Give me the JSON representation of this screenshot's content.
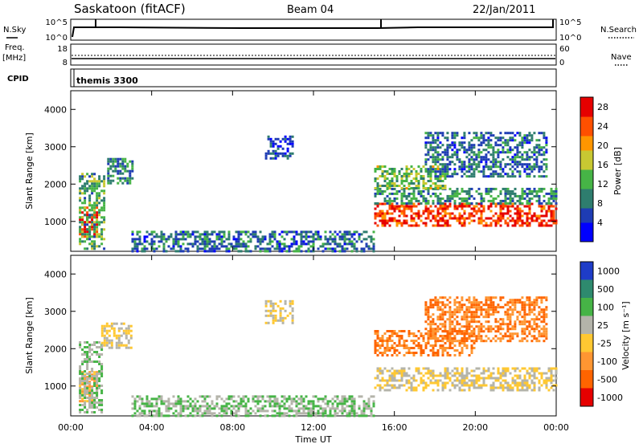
{
  "header": {
    "title": "Saskatoon (fitACF)",
    "beam": "Beam 04",
    "date": "22/Jan/2011"
  },
  "params": {
    "nsky_label": "N.Sky",
    "nsky_ticks": [
      "10^5",
      "10^0"
    ],
    "nsearch_label": "N.Search",
    "freq_label": "Freq.",
    "freq_unit": "[MHz]",
    "freq_ticks": [
      "18",
      "8"
    ],
    "nave_label": "Nave",
    "nave_ticks": [
      "60",
      "0"
    ],
    "cpid_label": "CPID",
    "cpid_value": "themis 3300"
  },
  "x_axis": {
    "label": "Time UT",
    "ticks": [
      "00:00",
      "04:00",
      "08:00",
      "12:00",
      "16:00",
      "20:00",
      "00:00"
    ]
  },
  "chart_data": [
    {
      "type": "heatmap",
      "quantity": "Power",
      "ylabel": "Slant Range [km]",
      "yticks": [
        1000,
        2000,
        3000,
        4000
      ],
      "ylim": [
        200,
        4500
      ],
      "x_range_hours": [
        0,
        24
      ],
      "colorbar": {
        "label": "Power [dB]",
        "ticks": [
          4,
          8,
          12,
          16,
          20,
          24,
          28
        ],
        "range": [
          0,
          30
        ]
      },
      "colors": [
        "#0000ff",
        "#1e3cb4",
        "#2e7d6e",
        "#46b446",
        "#c8c832",
        "#ff9600",
        "#ff5000",
        "#e60000"
      ],
      "regions": [
        {
          "t": [
            0.4,
            1.3
          ],
          "r": [
            600,
            1400
          ],
          "level": 28
        },
        {
          "t": [
            0.4,
            1.6
          ],
          "r": [
            300,
            2300
          ],
          "level": 12
        },
        {
          "t": [
            1.8,
            3.0
          ],
          "r": [
            2000,
            2700
          ],
          "level": 10
        },
        {
          "t": [
            9.6,
            11.0
          ],
          "r": [
            2700,
            3300
          ],
          "level": 6
        },
        {
          "t": [
            15.0,
            24.0
          ],
          "r": [
            900,
            1500
          ],
          "level": 26
        },
        {
          "t": [
            15.0,
            24.0
          ],
          "r": [
            1500,
            1900
          ],
          "level": 10
        },
        {
          "t": [
            15.0,
            18.5
          ],
          "r": [
            1900,
            2500
          ],
          "level": 14
        },
        {
          "t": [
            17.5,
            23.5
          ],
          "r": [
            2200,
            3400
          ],
          "level": 8
        },
        {
          "t": [
            3.0,
            15.0
          ],
          "r": [
            200,
            750
          ],
          "level": 8
        }
      ]
    },
    {
      "type": "heatmap",
      "quantity": "Velocity",
      "ylabel": "Slant Range [km]",
      "yticks": [
        1000,
        2000,
        3000,
        4000
      ],
      "ylim": [
        200,
        4500
      ],
      "x_range_hours": [
        0,
        24
      ],
      "colorbar": {
        "label": "Velocity [m s⁻¹]",
        "ticks": [
          "1000",
          "500",
          "100",
          "25",
          "-25",
          "-100",
          "-500",
          "-1000"
        ]
      },
      "colors": [
        "#1e3cc8",
        "#2e8a6e",
        "#46b446",
        "#b4b4aa",
        "#ffc832",
        "#ff9632",
        "#ff6400",
        "#e60000"
      ],
      "regions": [
        {
          "t": [
            0.4,
            1.3
          ],
          "r": [
            600,
            1400
          ],
          "level": -25
        },
        {
          "t": [
            0.4,
            1.5
          ],
          "r": [
            300,
            2200
          ],
          "level": 100
        },
        {
          "t": [
            1.5,
            3.0
          ],
          "r": [
            2000,
            2700
          ],
          "level": 25
        },
        {
          "t": [
            9.6,
            11.0
          ],
          "r": [
            2700,
            3300
          ],
          "level": 25
        },
        {
          "t": [
            15.0,
            24.0
          ],
          "r": [
            900,
            1500
          ],
          "level": 25
        },
        {
          "t": [
            15.0,
            20.0
          ],
          "r": [
            1800,
            2500
          ],
          "level": -100
        },
        {
          "t": [
            17.5,
            23.5
          ],
          "r": [
            2200,
            3400
          ],
          "level": -100
        },
        {
          "t": [
            3.0,
            15.0
          ],
          "r": [
            200,
            750
          ],
          "level": 100
        }
      ]
    }
  ]
}
